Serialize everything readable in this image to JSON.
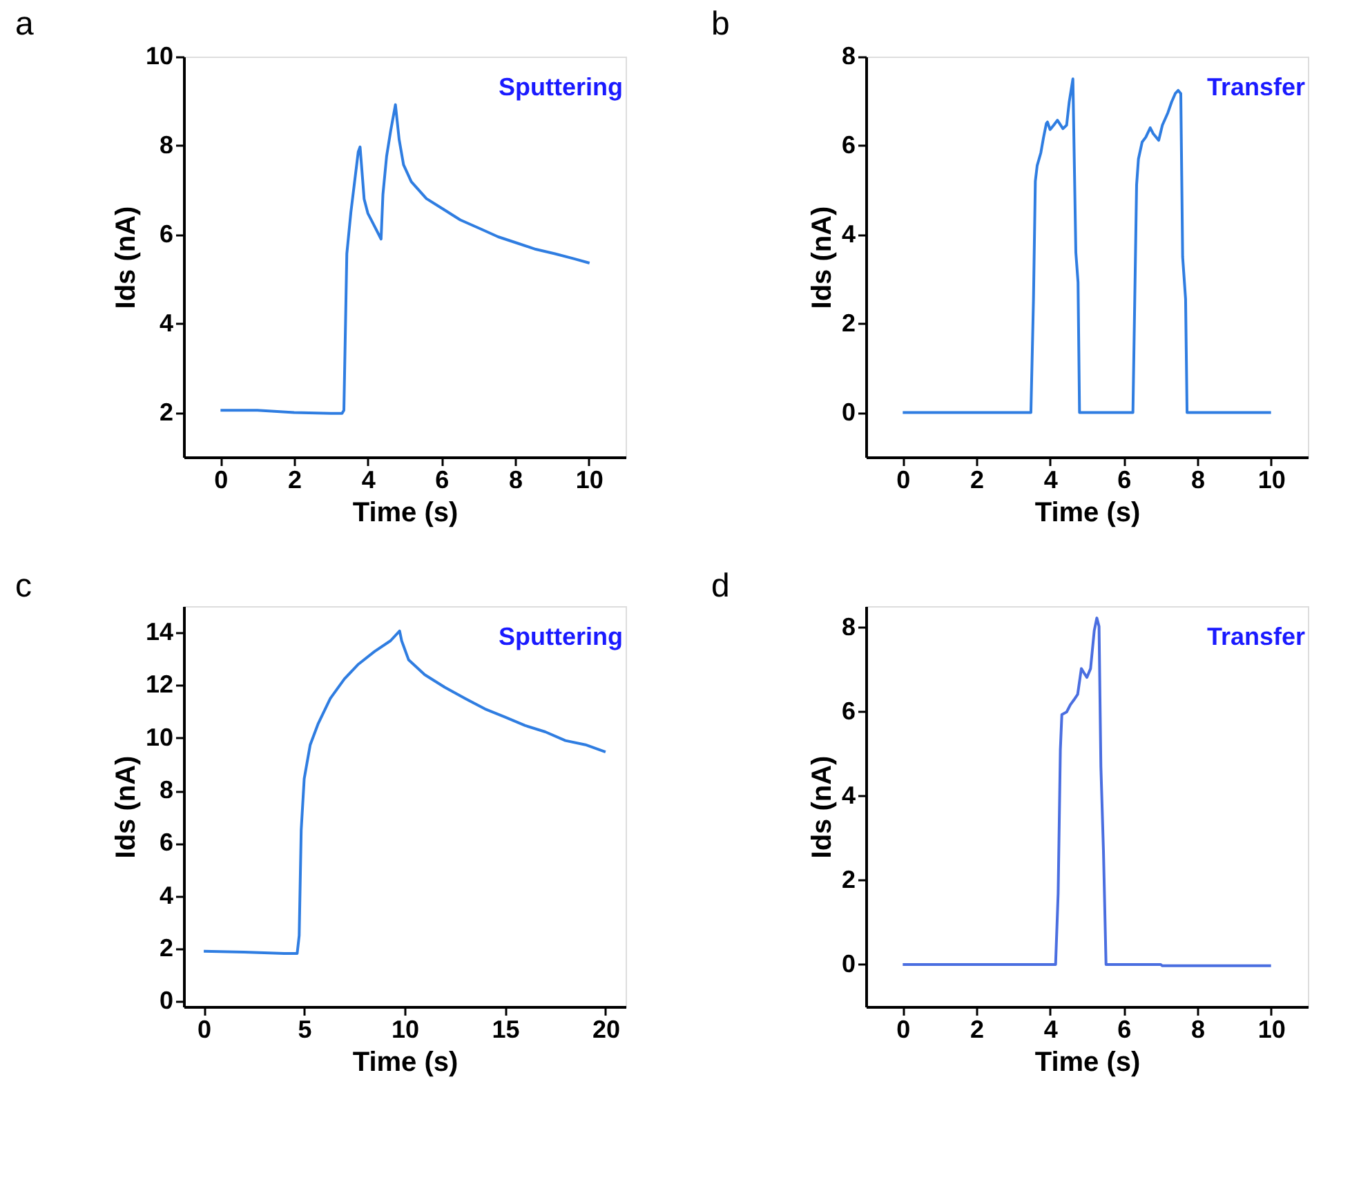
{
  "chart_data": [
    {
      "type": "line",
      "title": "a",
      "xlabel": "Time (s)",
      "ylabel": "Ids (nA)",
      "annotations": [
        "Sputtering"
      ],
      "grid": false,
      "xlim": [
        -1,
        11
      ],
      "ylim": [
        1,
        10
      ],
      "xticks": [
        0,
        2,
        4,
        6,
        8,
        10
      ],
      "yticks": [
        2,
        4,
        6,
        8,
        10
      ],
      "x": [
        0,
        1,
        2,
        3,
        3.3,
        3.35,
        3.43,
        3.54,
        3.74,
        3.79,
        3.9,
        4.0,
        4.15,
        4.36,
        4.41,
        4.51,
        4.62,
        4.75,
        4.85,
        4.97,
        5.18,
        5.59,
        6.05,
        6.51,
        7.03,
        7.54,
        8.05,
        8.56,
        9.08,
        9.59,
        10.02
      ],
      "series": [
        {
          "color": "#2f7de1",
          "values": [
            2.05,
            2.05,
            2.0,
            1.98,
            1.98,
            2.05,
            5.57,
            6.5,
            7.86,
            7.97,
            6.8,
            6.48,
            6.24,
            5.9,
            6.9,
            7.76,
            8.33,
            8.92,
            8.14,
            7.57,
            7.19,
            6.81,
            6.57,
            6.33,
            6.14,
            5.95,
            5.81,
            5.67,
            5.57,
            5.46,
            5.36
          ]
        }
      ]
    },
    {
      "type": "line",
      "title": "b",
      "xlabel": "Time (s)",
      "ylabel": "Ids (nA)",
      "annotations": [
        "Transfer"
      ],
      "grid": false,
      "xlim": [
        -1,
        11
      ],
      "ylim": [
        -1,
        8
      ],
      "xticks": [
        0,
        2,
        4,
        6,
        8,
        10
      ],
      "yticks": [
        0,
        2,
        4,
        6,
        8
      ],
      "x": [
        0,
        3.48,
        3.55,
        3.6,
        3.65,
        3.75,
        3.82,
        3.9,
        3.93,
        4.0,
        4.1,
        4.2,
        4.35,
        4.45,
        4.52,
        4.62,
        4.7,
        4.76,
        4.8,
        6.25,
        6.3,
        6.35,
        6.4,
        6.5,
        6.6,
        6.72,
        6.8,
        6.95,
        7.05,
        7.2,
        7.3,
        7.4,
        7.48,
        7.55,
        7.6,
        7.68,
        7.72,
        10
      ],
      "series": [
        {
          "color": "#2f7de1",
          "values": [
            0,
            0,
            2.55,
            5.2,
            5.55,
            5.84,
            6.17,
            6.5,
            6.53,
            6.36,
            6.46,
            6.57,
            6.38,
            6.46,
            6.98,
            7.5,
            3.6,
            2.93,
            0,
            0,
            2.55,
            5.12,
            5.7,
            6.08,
            6.19,
            6.4,
            6.27,
            6.12,
            6.46,
            6.74,
            6.98,
            7.17,
            7.24,
            7.17,
            3.5,
            2.55,
            0,
            0
          ]
        }
      ]
    },
    {
      "type": "line",
      "title": "c",
      "xlabel": "Time (s)",
      "ylabel": "Ids (nA)",
      "annotations": [
        "Sputtering"
      ],
      "grid": false,
      "xlim": [
        -1,
        21
      ],
      "ylim": [
        -0.2,
        15
      ],
      "xticks": [
        0,
        5,
        10,
        15,
        20
      ],
      "yticks": [
        0,
        2,
        4,
        6,
        8,
        10,
        12,
        14
      ],
      "x": [
        0,
        2,
        4,
        4.65,
        4.75,
        4.85,
        5.0,
        5.3,
        5.7,
        6.3,
        7,
        7.7,
        8.5,
        9.3,
        9.75,
        9.85,
        10.2,
        11,
        12,
        13,
        14,
        15,
        16,
        17,
        18,
        19,
        20
      ],
      "series": [
        {
          "color": "#2f7de1",
          "values": [
            1.9,
            1.87,
            1.82,
            1.82,
            2.5,
            6.5,
            8.45,
            9.74,
            10.55,
            11.5,
            12.24,
            12.8,
            13.28,
            13.69,
            14.06,
            13.69,
            12.96,
            12.4,
            11.92,
            11.5,
            11.1,
            10.79,
            10.47,
            10.23,
            9.9,
            9.74,
            9.47
          ]
        }
      ]
    },
    {
      "type": "line",
      "title": "d",
      "xlabel": "Time (s)",
      "ylabel": "Ids (nA)",
      "annotations": [
        "Transfer"
      ],
      "grid": false,
      "xlim": [
        -1,
        11
      ],
      "ylim": [
        -1,
        8.5
      ],
      "xticks": [
        0,
        2,
        4,
        6,
        8,
        10
      ],
      "yticks": [
        0,
        2,
        4,
        6,
        8
      ],
      "x": [
        0,
        4.15,
        4.22,
        4.28,
        4.32,
        4.45,
        4.55,
        4.65,
        4.75,
        4.85,
        4.92,
        5.0,
        5.1,
        5.2,
        5.27,
        5.33,
        5.38,
        5.45,
        5.52,
        7.0,
        7.05,
        10
      ],
      "series": [
        {
          "color": "#4a6ee0",
          "values": [
            0,
            0,
            1.69,
            5.1,
            5.93,
            5.99,
            6.16,
            6.28,
            6.41,
            7.02,
            6.92,
            6.81,
            7.02,
            7.92,
            8.22,
            8.02,
            4.7,
            2.69,
            0,
            0,
            -0.03,
            -0.03
          ]
        }
      ]
    }
  ]
}
